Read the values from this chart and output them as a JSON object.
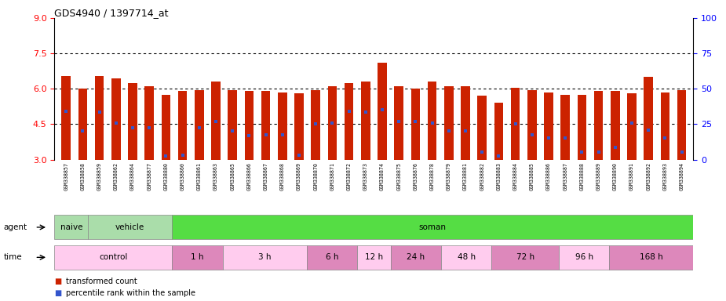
{
  "title": "GDS4940 / 1397714_at",
  "samples": [
    "GSM338857",
    "GSM338858",
    "GSM338859",
    "GSM338862",
    "GSM338864",
    "GSM338877",
    "GSM338880",
    "GSM338860",
    "GSM338861",
    "GSM338863",
    "GSM338865",
    "GSM338866",
    "GSM338867",
    "GSM338868",
    "GSM338869",
    "GSM338870",
    "GSM338871",
    "GSM338872",
    "GSM338873",
    "GSM338874",
    "GSM338875",
    "GSM338876",
    "GSM338878",
    "GSM338879",
    "GSM338881",
    "GSM338882",
    "GSM338883",
    "GSM338884",
    "GSM338885",
    "GSM338886",
    "GSM338887",
    "GSM338888",
    "GSM338889",
    "GSM338890",
    "GSM338891",
    "GSM338892",
    "GSM338893",
    "GSM338894"
  ],
  "bar_values": [
    6.55,
    6.0,
    6.55,
    6.45,
    6.25,
    6.1,
    5.75,
    5.9,
    5.95,
    6.3,
    5.95,
    5.9,
    5.9,
    5.85,
    5.8,
    5.95,
    6.1,
    6.25,
    6.3,
    7.1,
    6.1,
    6.0,
    6.3,
    6.1,
    6.1,
    5.7,
    5.4,
    6.05,
    5.95,
    5.85,
    5.75,
    5.75,
    5.9,
    5.9,
    5.8,
    6.5,
    5.85,
    5.95
  ],
  "blue_marker_values": [
    5.05,
    4.2,
    5.0,
    4.55,
    4.35,
    4.35,
    3.15,
    3.2,
    4.35,
    4.6,
    4.2,
    4.0,
    4.05,
    4.05,
    3.2,
    4.5,
    4.55,
    5.05,
    5.0,
    5.1,
    4.6,
    4.6,
    4.55,
    4.2,
    4.2,
    3.3,
    3.15,
    4.5,
    4.05,
    3.9,
    3.9,
    3.3,
    3.3,
    3.5,
    4.55,
    4.25,
    3.9,
    3.3
  ],
  "ylim": [
    3.0,
    9.0
  ],
  "yticks_left": [
    3,
    4.5,
    6,
    7.5,
    9
  ],
  "yticks_right": [
    0,
    25,
    50,
    75,
    100
  ],
  "dotted_lines": [
    4.5,
    6.0,
    7.5
  ],
  "bar_color": "#cc2200",
  "blue_color": "#3355cc",
  "bar_bottom": 3.0,
  "agent_groups": [
    {
      "label": "naive",
      "start": 0,
      "end": 2,
      "color": "#aaddaa"
    },
    {
      "label": "vehicle",
      "start": 2,
      "end": 7,
      "color": "#aaddaa"
    },
    {
      "label": "soman",
      "start": 7,
      "end": 38,
      "color": "#55dd44"
    }
  ],
  "time_groups": [
    {
      "label": "control",
      "start": 0,
      "end": 7,
      "color": "#ffccee"
    },
    {
      "label": "1 h",
      "start": 7,
      "end": 10,
      "color": "#dd88bb"
    },
    {
      "label": "3 h",
      "start": 10,
      "end": 15,
      "color": "#ffccee"
    },
    {
      "label": "6 h",
      "start": 15,
      "end": 18,
      "color": "#dd88bb"
    },
    {
      "label": "12 h",
      "start": 18,
      "end": 20,
      "color": "#ffccee"
    },
    {
      "label": "24 h",
      "start": 20,
      "end": 23,
      "color": "#dd88bb"
    },
    {
      "label": "48 h",
      "start": 23,
      "end": 26,
      "color": "#ffccee"
    },
    {
      "label": "72 h",
      "start": 26,
      "end": 30,
      "color": "#dd88bb"
    },
    {
      "label": "96 h",
      "start": 30,
      "end": 33,
      "color": "#ffccee"
    },
    {
      "label": "168 h",
      "start": 33,
      "end": 38,
      "color": "#dd88bb"
    }
  ],
  "bg_color": "#ffffff",
  "plot_bg_color": "#ffffff",
  "xticklabel_bg": "#ddddcc"
}
